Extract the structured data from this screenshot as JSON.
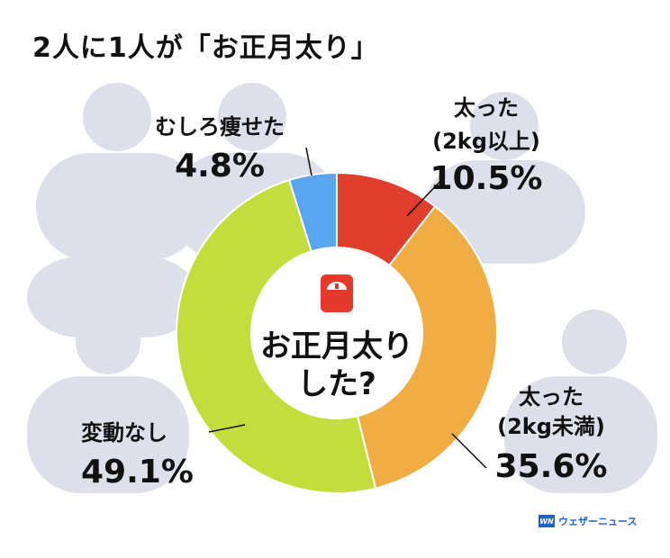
{
  "headline": "2人に1人が「お正月太り」",
  "center_title": [
    "お正月太り",
    "した?"
  ],
  "logo": {
    "mark": "WN",
    "text": "ウェザーニュース"
  },
  "colors": {
    "background_figures": "#dde0ea",
    "center_text": "#e53a2a",
    "scale_icon": "#e53a2a"
  },
  "chart_data": {
    "type": "pie",
    "variant": "donut",
    "start_angle_deg": 0,
    "direction": "clockwise",
    "title": "お正月太りした?",
    "slices": [
      {
        "label_lines": [
          "太った",
          "(2kg以上)"
        ],
        "value": 10.5,
        "value_label": "10.5%",
        "color": "#e03e2d"
      },
      {
        "label_lines": [
          "太った",
          "(2kg未満)"
        ],
        "value": 35.6,
        "value_label": "35.6%",
        "color": "#f0ad43"
      },
      {
        "label_lines": [
          "変動なし"
        ],
        "value": 49.1,
        "value_label": "49.1%",
        "color": "#c4dd3d"
      },
      {
        "label_lines": [
          "むしろ痩せた"
        ],
        "value": 4.8,
        "value_label": "4.8%",
        "color": "#5aa5f0"
      }
    ]
  }
}
